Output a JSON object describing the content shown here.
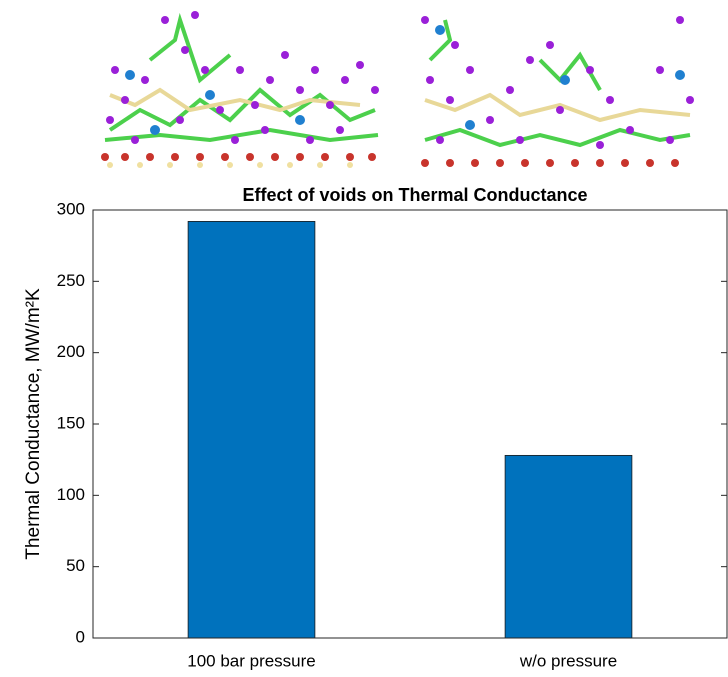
{
  "chart_data": {
    "type": "bar",
    "title": "Effect of voids on Thermal Conductance",
    "y_label": "Thermal Conductance, MW/m²K",
    "categories": [
      "100 bar pressure",
      "w/o pressure"
    ],
    "values": [
      292,
      128
    ],
    "color": "#0072bd",
    "ylim": [
      0,
      300
    ],
    "yticks": [
      0,
      50,
      100,
      150,
      200,
      250,
      300
    ]
  }
}
